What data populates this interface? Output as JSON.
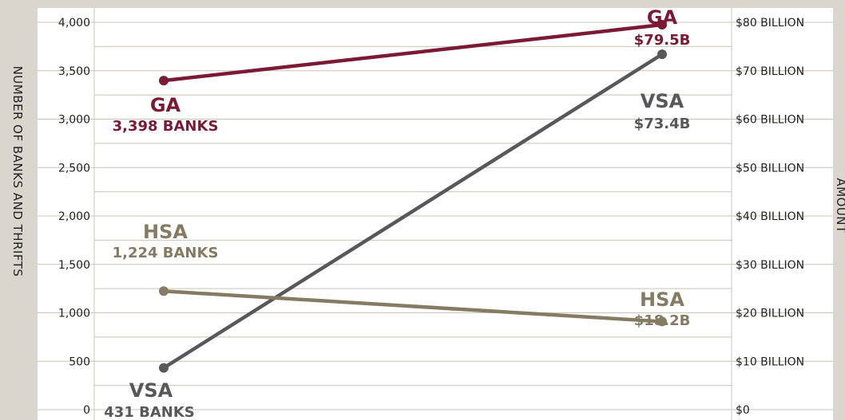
{
  "chart_data": {
    "type": "line",
    "left_axis": {
      "label": "NUMBER OF BANKS AND THRIFTS",
      "ylim": [
        0,
        4000
      ],
      "ticks": [
        "0",
        "500",
        "1,000",
        "1,500",
        "2,000",
        "2,500",
        "3,000",
        "3,500",
        "4,000"
      ]
    },
    "right_axis": {
      "label": "AMOUNT",
      "ylim": [
        0,
        80
      ],
      "unit": "billion USD",
      "ticks": [
        "$0",
        "$10 BILLION",
        "$20 BILLION",
        "$30 BILLION",
        "$40 BILLION",
        "$50 BILLION",
        "$60 BILLION",
        "$70 BILLION",
        "$80 BILLION"
      ]
    },
    "grid": true,
    "series": [
      {
        "name": "GA",
        "color": "#7b1a35",
        "left_value": 3398,
        "right_value": 79.5,
        "left_label": "3,398 BANKS",
        "right_label": "$79.5B"
      },
      {
        "name": "VSA",
        "color": "#58585a",
        "left_value": 431,
        "right_value": 73.4,
        "left_label": "431 BANKS",
        "right_label": "$73.4B"
      },
      {
        "name": "HSA",
        "color": "#857b63",
        "left_value": 1224,
        "right_value": 18.2,
        "left_label": "1,224 BANKS",
        "right_label": "$18.2B"
      }
    ]
  }
}
